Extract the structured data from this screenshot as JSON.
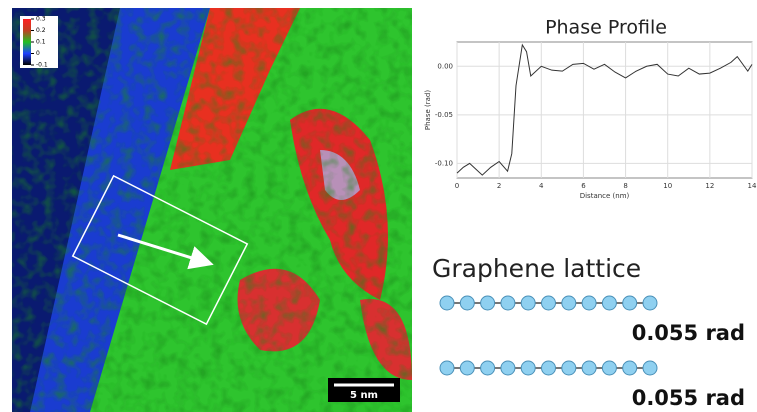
{
  "chart_data": [
    {
      "type": "line",
      "title": "Phase Profile",
      "x_label": "Distance (nm)",
      "y_label": "Phase (rad)",
      "x": [
        0,
        0.3,
        0.6,
        0.9,
        1.2,
        1.6,
        2.0,
        2.4,
        2.6,
        2.8,
        3.1,
        3.3,
        3.5,
        4.0,
        4.5,
        5.0,
        5.5,
        6.0,
        6.5,
        7.0,
        7.5,
        8.0,
        8.5,
        9.0,
        9.5,
        10.0,
        10.5,
        11.0,
        11.5,
        12.0,
        12.5,
        13.0,
        13.3,
        13.8,
        14.0
      ],
      "values": [
        -0.11,
        -0.104,
        -0.1,
        -0.106,
        -0.112,
        -0.104,
        -0.098,
        -0.108,
        -0.09,
        -0.02,
        0.022,
        0.015,
        -0.01,
        0.0,
        -0.004,
        -0.005,
        0.002,
        0.003,
        -0.003,
        0.002,
        -0.006,
        -0.012,
        -0.005,
        0.0,
        0.002,
        -0.008,
        -0.01,
        -0.002,
        -0.008,
        -0.007,
        -0.002,
        0.004,
        0.01,
        -0.005,
        0.002
      ],
      "color": "#333333",
      "xlim": [
        0,
        14
      ],
      "xticks": [
        0,
        2,
        4,
        6,
        8,
        10,
        12,
        14
      ],
      "ylim": [
        -0.115,
        0.025
      ],
      "yticks": [
        {
          "value": 0,
          "label": "0.00"
        },
        {
          "value": -0.05,
          "label": "-0.05"
        },
        {
          "value": -0.1,
          "label": "-0.10"
        }
      ],
      "grid": true
    }
  ],
  "phase_map": {
    "colorbar_ticks": [
      0.3,
      0.2,
      0.1,
      0,
      -0.1
    ],
    "scale_bar": "5 nm"
  },
  "graphene": {
    "title": "Graphene lattice",
    "labels": [
      "0.055 rad",
      "0.055 rad"
    ]
  }
}
